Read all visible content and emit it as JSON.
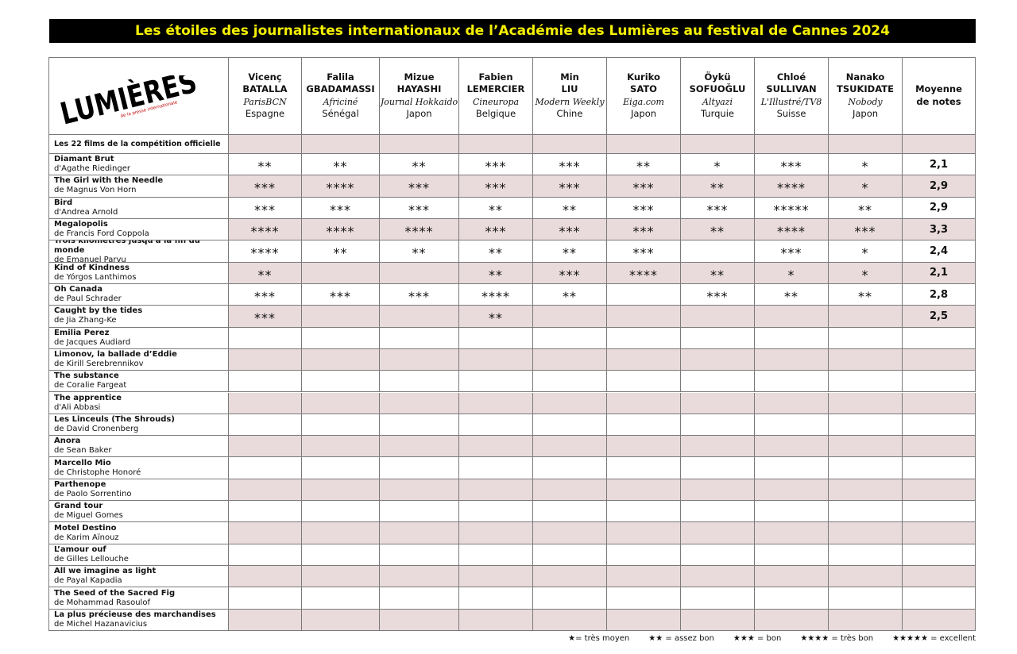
{
  "header": {
    "title": "Les étoiles des journalistes internationaux de l’Académie des Lumières au festival de Cannes 2024"
  },
  "logo": {
    "name": "LUMIÈRES",
    "tagline": "de la presse internationale"
  },
  "table": {
    "section_label": "Les 22 films de la compétition officielle",
    "average_header": "Moyenne de notes",
    "jurors": [
      {
        "first": "Vicenç",
        "last": "BATALLA",
        "outlet": "ParisBCN",
        "country": "Espagne"
      },
      {
        "first": "Falila",
        "last": "GBADAMASSI",
        "outlet": "Africiné",
        "country": "Sénégal"
      },
      {
        "first": "Mizue",
        "last": "HAYASHI",
        "outlet": "Journal Hokkaido",
        "country": "Japon"
      },
      {
        "first": "Fabien",
        "last": "LEMERCIER",
        "outlet": "Cineuropa",
        "country": "Belgique"
      },
      {
        "first": "Min",
        "last": "LIU",
        "outlet": "Modern Weekly",
        "country": "Chine"
      },
      {
        "first": "Kuriko",
        "last": "SATO",
        "outlet": "Eiga.com",
        "country": "Japon"
      },
      {
        "first": "Öykü",
        "last": "SOFUOĞLU",
        "outlet": "Altyazi",
        "country": "Turquie"
      },
      {
        "first": "Chloé",
        "last": "SULLIVAN",
        "outlet": "L'Illustré/TV8",
        "country": "Suisse"
      },
      {
        "first": "Nanako",
        "last": "TSUKIDATE",
        "outlet": "Nobody",
        "country": "Japon"
      }
    ],
    "films": [
      {
        "title": "Diamant Brut",
        "director": "d'Agathe Riedinger",
        "ratings": [
          "**",
          "**",
          "**",
          "***",
          "***",
          "**",
          "*",
          "***",
          "*"
        ],
        "average": "2,1"
      },
      {
        "title": "The Girl with the Needle",
        "director": "de Magnus Von Horn",
        "ratings": [
          "***",
          "****",
          "***",
          "***",
          "***",
          "***",
          "**",
          "****",
          "*"
        ],
        "average": "2,9"
      },
      {
        "title": "Bird",
        "director": "d'Andrea Arnold",
        "ratings": [
          "***",
          "***",
          "***",
          "**",
          "**",
          "***",
          "***",
          "*****",
          "**"
        ],
        "average": "2,9"
      },
      {
        "title": "Megalopolis",
        "director": "de Francis Ford Coppola",
        "ratings": [
          "****",
          "****",
          "****",
          "***",
          "***",
          "***",
          "**",
          "****",
          "***"
        ],
        "average": "3,3"
      },
      {
        "title": "Trois kilomètres jusqu'à la fin du monde",
        "director": "de Emanuel Parvu",
        "ratings": [
          "****",
          "**",
          "**",
          "**",
          "**",
          "***",
          null,
          "***",
          "*"
        ],
        "average": "2,4"
      },
      {
        "title": "Kind of Kindness",
        "director": "de Yórgos Lanthimos",
        "ratings": [
          "**",
          null,
          null,
          "**",
          "***",
          "****",
          "**",
          "*",
          "*"
        ],
        "average": "2,1"
      },
      {
        "title": "Oh Canada",
        "director": "de Paul Schrader",
        "ratings": [
          "***",
          "***",
          "***",
          "****",
          "**",
          null,
          "***",
          "**",
          "**"
        ],
        "average": "2,8"
      },
      {
        "title": "Caught by the tides",
        "director": "de Jia Zhang-Ke",
        "ratings": [
          "***",
          null,
          null,
          "**",
          null,
          null,
          null,
          null,
          null
        ],
        "average": "2,5"
      },
      {
        "title": "Emilia Perez",
        "director": "de Jacques Audiard"
      },
      {
        "title": "Limonov, la ballade d’Eddie",
        "director": "de Kirill Serebrennikov"
      },
      {
        "title": "The substance",
        "director": "de Coralie Fargeat"
      },
      {
        "title": "The apprentice",
        "director": "d'Ali Abbasi"
      },
      {
        "title": "Les Linceuls (The Shrouds)",
        "director": "de David Cronenberg"
      },
      {
        "title": "Anora",
        "director": "de Sean Baker"
      },
      {
        "title": "Marcello Mio",
        "director": "de Christophe Honoré"
      },
      {
        "title": "Parthenope",
        "director": "de Paolo Sorrentino"
      },
      {
        "title": "Grand tour",
        "director": "de Miguel Gomes"
      },
      {
        "title": "Motel Destino",
        "director": "de Karim Aïnouz"
      },
      {
        "title": "L’amour ouf",
        "director": "de Gilles Lellouche"
      },
      {
        "title": "All we imagine as light",
        "director": "de Payal Kapadia"
      },
      {
        "title": "The Seed of the Sacred Fig",
        "director": "de Mohammad Rasoulof"
      },
      {
        "title": "La plus précieuse des marchandises",
        "director": "de Michel Hazanavicius"
      }
    ]
  },
  "legend": [
    "★= très moyen",
    "★★ = assez bon",
    "★★★ = bon",
    "★★★★ = très bon",
    "★★★★★ = excellent"
  ]
}
